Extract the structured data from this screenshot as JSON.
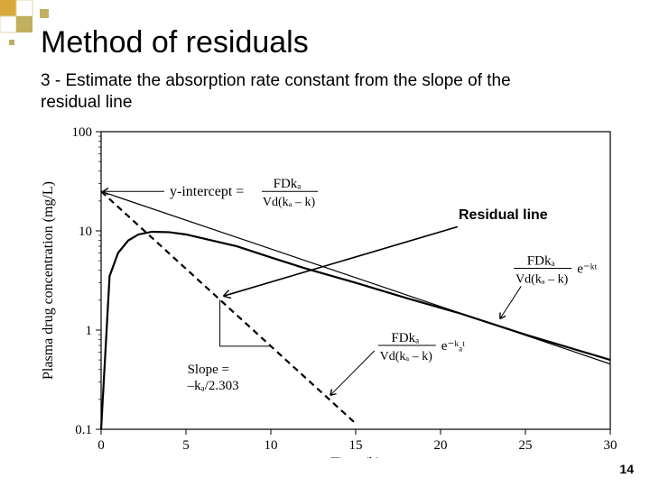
{
  "title": "Method of residuals",
  "subtitle": "3 - Estimate the absorption rate constant from the slope of the residual line",
  "residual_label": "Residual line",
  "page_number": "14",
  "chart": {
    "type": "line",
    "x_label": "Time (h)",
    "y_label": "Plasma drug concentration (mg/L)",
    "x_lim": [
      0,
      30
    ],
    "y_lim": [
      0.1,
      100
    ],
    "y_scale": "log",
    "x_ticks": [
      0,
      5,
      10,
      15,
      20,
      25,
      30
    ],
    "y_ticks": [
      0.1,
      1,
      10,
      100
    ],
    "y_tick_labels": [
      "0.1",
      "1",
      "10",
      "100"
    ],
    "background_color": "#ffffff",
    "axis_color": "#000000",
    "curves": {
      "plasma": {
        "stroke": "#000000",
        "stroke_width": 2.2,
        "points": [
          [
            0,
            0.1
          ],
          [
            0.5,
            3.5
          ],
          [
            1,
            6
          ],
          [
            1.6,
            8
          ],
          [
            2.2,
            9.2
          ],
          [
            3,
            9.8
          ],
          [
            4,
            9.7
          ],
          [
            5,
            9.2
          ],
          [
            6,
            8.4
          ],
          [
            8,
            7.0
          ],
          [
            10,
            5.4
          ],
          [
            12,
            4.2
          ],
          [
            15,
            3.0
          ],
          [
            18,
            2.1
          ],
          [
            21,
            1.5
          ],
          [
            25,
            0.9
          ],
          [
            30,
            0.5
          ]
        ]
      },
      "terminal_line": {
        "stroke": "#000000",
        "stroke_width": 1.2,
        "y_intercept": 25,
        "slope_per_hr": -0.058,
        "x_range": [
          0,
          30
        ]
      },
      "residual_line": {
        "stroke": "#000000",
        "stroke_width": 2.2,
        "dash": "7,5",
        "y_intercept": 25,
        "slope_per_hr": -0.156,
        "x_range": [
          0,
          15
        ]
      },
      "residual_annotation_arrow": {
        "stroke": "#000000",
        "stroke_width": 1.6,
        "from": [
          21,
          11
        ],
        "to": [
          7.2,
          2.2
        ]
      }
    },
    "annotations": {
      "y_intercept_label": "y-intercept =",
      "y_intercept_formula": {
        "num": "FDkₐ",
        "den": "Vd(kₐ – k)"
      },
      "slope_label": "Slope =",
      "slope_value": "–kₐ/2.303",
      "residual_eq": {
        "num": "FDkₐ",
        "den": "Vd(kₐ – k)",
        "exp": "e⁻ᵏₐᵗ"
      },
      "terminal_eq": {
        "num": "FDkₐ",
        "den": "Vd(kₐ – k)",
        "exp": "e⁻ᵏᵗ"
      }
    }
  },
  "accent_colors": {
    "gold": "#d8a93a",
    "olive": "#c0b060"
  }
}
